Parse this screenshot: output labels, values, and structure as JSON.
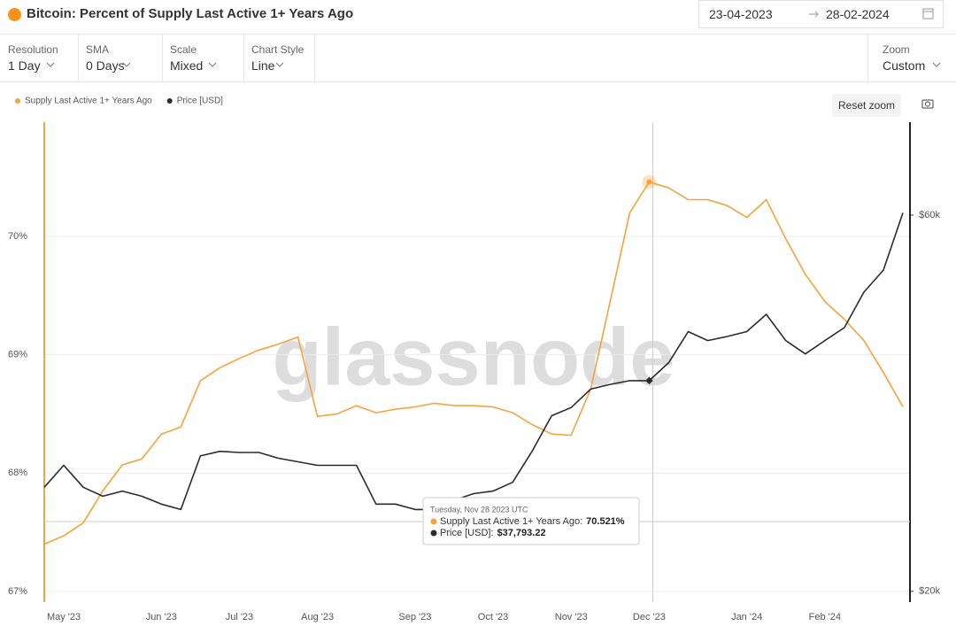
{
  "header": {
    "title": "Bitcoin: Percent of Supply Last Active 1+ Years Ago",
    "date_from": "23-04-2023",
    "date_to": "28-02-2024"
  },
  "controls": [
    {
      "label": "Resolution",
      "value": "1 Day"
    },
    {
      "label": "SMA",
      "value": "0 Days"
    },
    {
      "label": "Scale",
      "value": "Mixed"
    },
    {
      "label": "Chart Style",
      "value": "Line"
    }
  ],
  "zoom": {
    "label": "Zoom",
    "value": "Custom"
  },
  "reset_zoom": "Reset zoom",
  "chart_data": {
    "type": "line",
    "watermark": "glassnode",
    "categories": [
      null,
      "May '23",
      null,
      null,
      null,
      null,
      "Jun '23",
      null,
      null,
      null,
      "Jul '23",
      null,
      null,
      null,
      "Aug '23",
      null,
      null,
      null,
      null,
      "Sep '23",
      null,
      null,
      null,
      "Oct '23",
      null,
      null,
      null,
      "Nov '23",
      null,
      null,
      null,
      "Dec '23",
      null,
      null,
      null,
      null,
      "Jan '24",
      null,
      null,
      null,
      "Feb '24",
      null,
      null,
      null,
      null
    ],
    "series": [
      {
        "name": "Supply Last Active 1+ Years Ago",
        "color": "#f7a23c",
        "axis": "y",
        "values": [
          67.4,
          67.47,
          67.58,
          67.85,
          68.07,
          68.12,
          68.33,
          68.39,
          68.78,
          68.89,
          68.97,
          69.04,
          69.09,
          69.15,
          68.48,
          68.5,
          68.57,
          68.51,
          68.54,
          68.56,
          68.59,
          68.57,
          68.57,
          68.56,
          68.51,
          68.41,
          68.33,
          68.32,
          68.71,
          69.45,
          70.2,
          70.46,
          70.41,
          70.31,
          70.31,
          70.26,
          70.16,
          70.31,
          69.98,
          69.68,
          69.45,
          69.3,
          69.12,
          68.85,
          68.56
        ]
      },
      {
        "name": "Price [USD]",
        "color": "#2b2b2b",
        "axis": "y2",
        "values": [
          27100,
          28900,
          27100,
          26400,
          26800,
          26400,
          25800,
          25400,
          29700,
          30100,
          30000,
          30000,
          29500,
          29200,
          28900,
          28900,
          28900,
          25800,
          25800,
          25400,
          25400,
          26100,
          26600,
          26800,
          27500,
          30100,
          33400,
          34200,
          36100,
          36600,
          37000,
          37000,
          39000,
          42700,
          41600,
          42100,
          42700,
          44900,
          41600,
          40000,
          41600,
          43200,
          47900,
          51100,
          60400
        ]
      }
    ],
    "ylim": [
      66.91,
      70.965
    ],
    "yticks": [
      {
        "value": 67,
        "label": "67%"
      },
      {
        "value": 68,
        "label": "68%"
      },
      {
        "value": 69,
        "label": "69%"
      },
      {
        "value": 70,
        "label": "70%"
      }
    ],
    "y2lim": [
      19380,
      78700
    ],
    "y2ticks": [
      {
        "value": 20000,
        "label": "$20k"
      },
      {
        "value": 60000,
        "label": "$60k"
      }
    ],
    "y2_log": true,
    "grid": true,
    "tooltip": {
      "date": "Tuesday, Nov 28 2023 UTC",
      "items": [
        {
          "label": "Supply Last Active 1+ Years Ago:",
          "value": "70.521%"
        },
        {
          "label": "Price [USD]:",
          "value": "$37,793.22"
        }
      ]
    }
  }
}
